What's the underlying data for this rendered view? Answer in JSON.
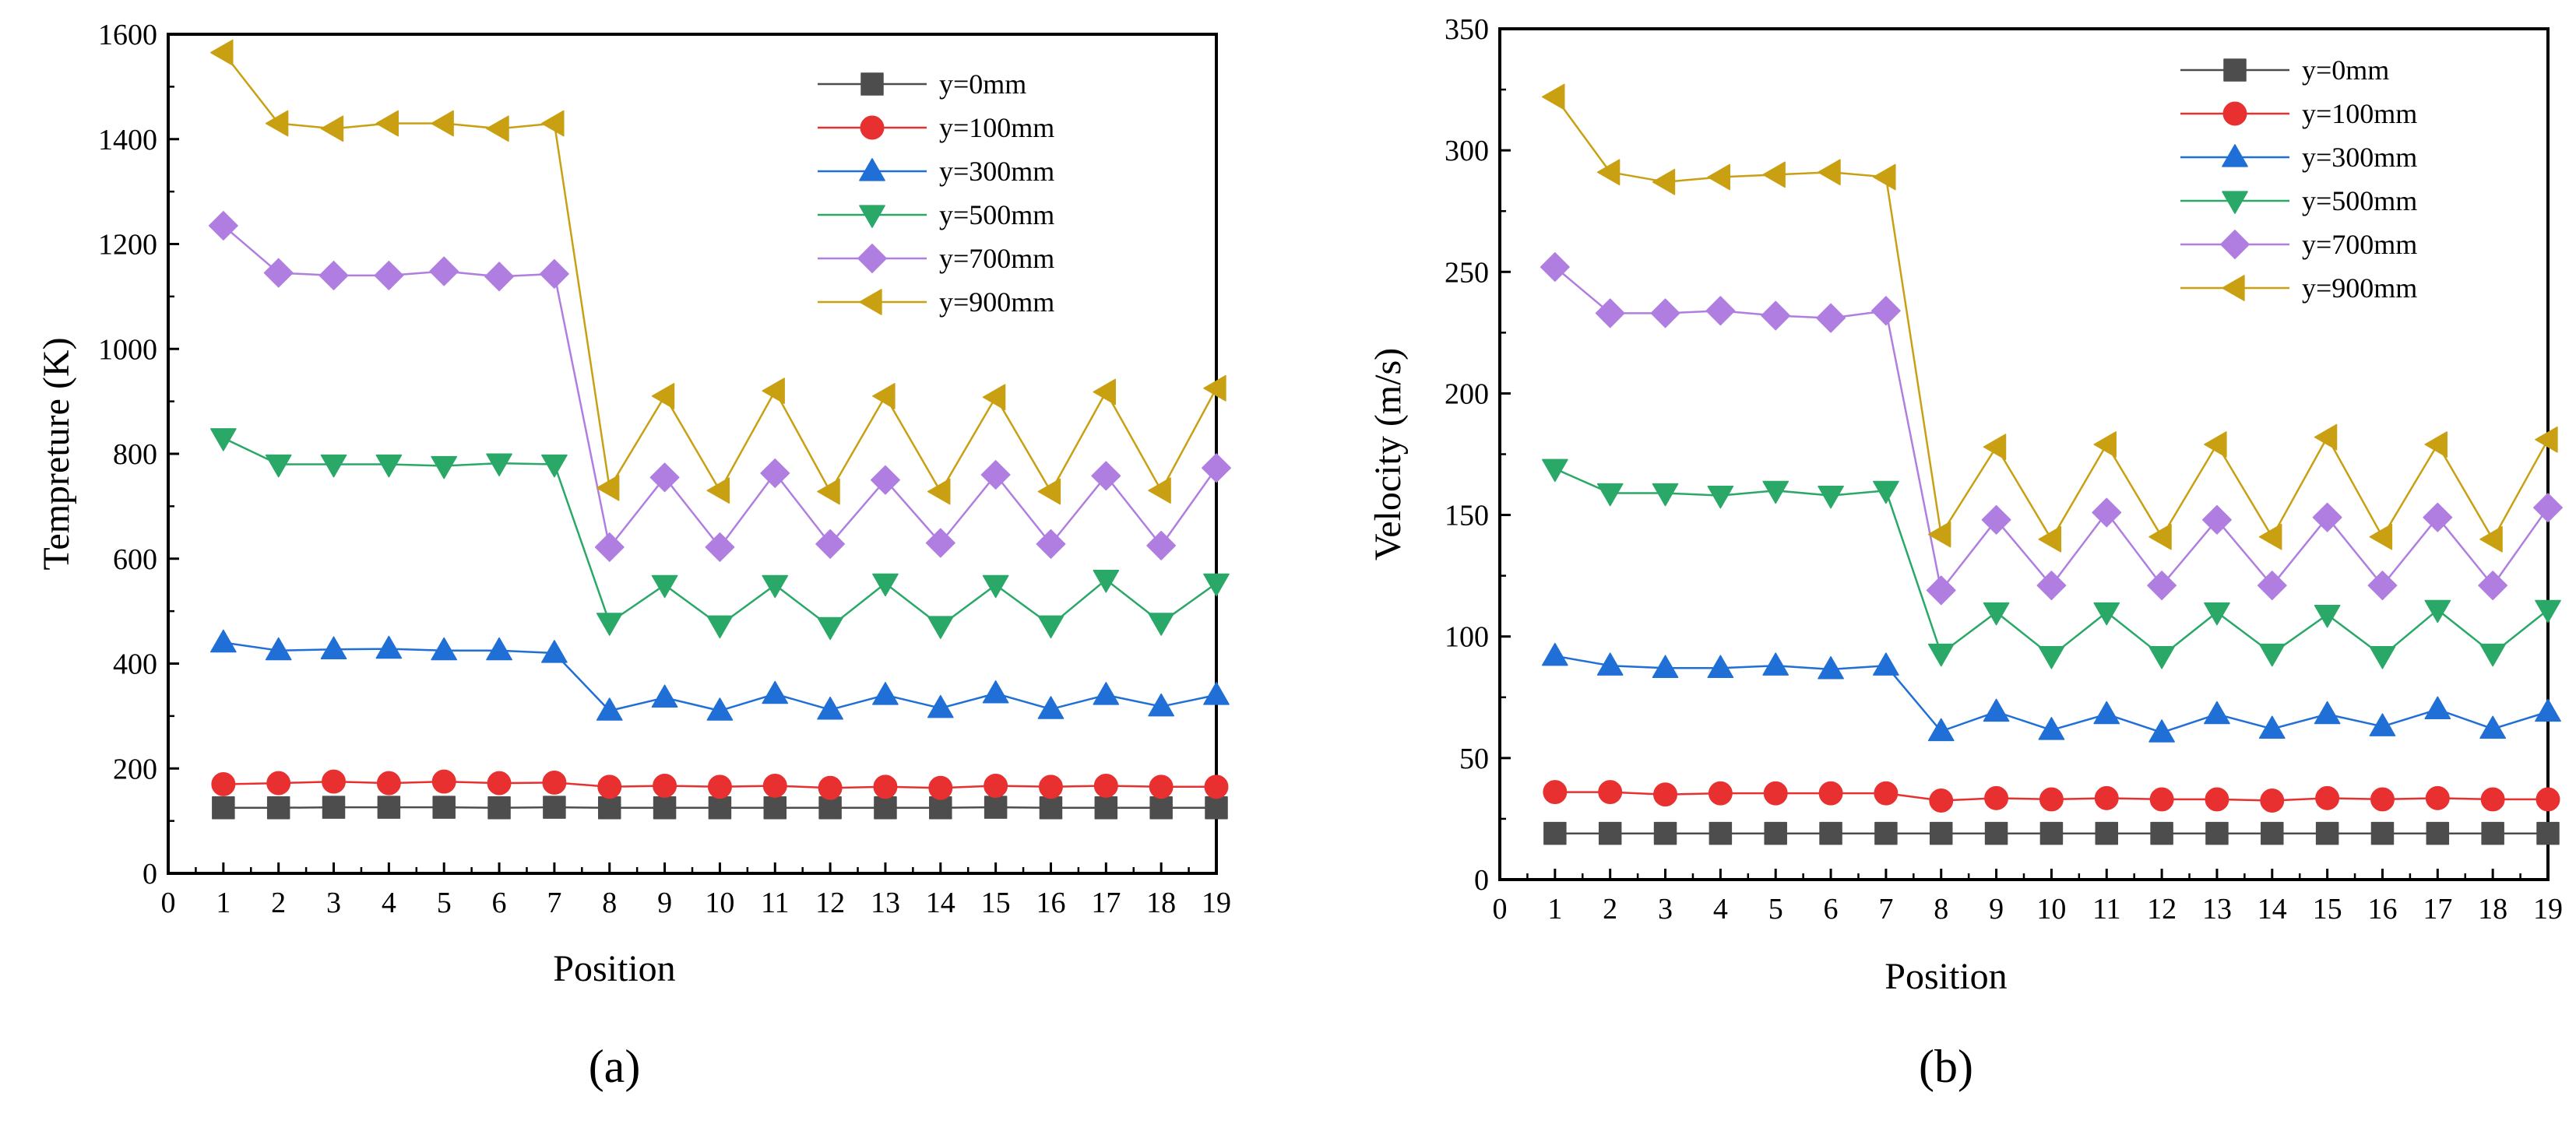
{
  "figure": {
    "panels": [
      "(a)",
      "(b)"
    ]
  },
  "chart_data": [
    {
      "panel_label": "(a)",
      "type": "line",
      "xlabel": "Position",
      "ylabel": "Tempreture (K)",
      "xlim": [
        0,
        19
      ],
      "ylim": [
        0,
        1600
      ],
      "xticks": [
        0,
        1,
        2,
        3,
        4,
        5,
        6,
        7,
        8,
        9,
        10,
        11,
        12,
        13,
        14,
        15,
        16,
        17,
        18,
        19
      ],
      "yticks": [
        0,
        200,
        400,
        600,
        800,
        1000,
        1200,
        1400,
        1600
      ],
      "grid": false,
      "legend_position": "top-right",
      "x": [
        1,
        2,
        3,
        4,
        5,
        6,
        7,
        8,
        9,
        10,
        11,
        12,
        13,
        14,
        15,
        16,
        17,
        18,
        19
      ],
      "series": [
        {
          "name": "y=0mm",
          "color": "#4d4d4d",
          "marker": "square",
          "values": [
            125,
            125,
            126,
            126,
            126,
            125,
            126,
            125,
            125,
            125,
            125,
            125,
            125,
            125,
            126,
            125,
            125,
            125,
            125
          ]
        },
        {
          "name": "y=100mm",
          "color": "#e83030",
          "marker": "circle",
          "values": [
            170,
            172,
            175,
            172,
            175,
            172,
            173,
            165,
            167,
            165,
            167,
            163,
            165,
            163,
            167,
            165,
            167,
            165,
            165
          ]
        },
        {
          "name": "y=300mm",
          "color": "#1f6fd6",
          "marker": "triangle-up",
          "values": [
            440,
            425,
            427,
            428,
            425,
            425,
            420,
            310,
            335,
            310,
            342,
            312,
            340,
            315,
            343,
            313,
            340,
            318,
            340
          ]
        },
        {
          "name": "y=500mm",
          "color": "#2aa868",
          "marker": "triangle-down",
          "values": [
            830,
            780,
            780,
            780,
            777,
            782,
            780,
            478,
            550,
            473,
            550,
            470,
            553,
            472,
            550,
            473,
            560,
            478,
            553
          ]
        },
        {
          "name": "y=700mm",
          "color": "#b07ee0",
          "marker": "diamond",
          "values": [
            1235,
            1145,
            1140,
            1140,
            1148,
            1138,
            1143,
            622,
            755,
            622,
            763,
            628,
            750,
            630,
            760,
            628,
            758,
            625,
            773
          ]
        },
        {
          "name": "y=900mm",
          "color": "#c9a012",
          "marker": "triangle-left",
          "values": [
            1565,
            1430,
            1420,
            1430,
            1430,
            1420,
            1430,
            735,
            910,
            730,
            920,
            728,
            910,
            728,
            908,
            728,
            918,
            730,
            925
          ]
        }
      ]
    },
    {
      "panel_label": "(b)",
      "type": "line",
      "xlabel": "Position",
      "ylabel": "Velocity (m/s)",
      "xlim": [
        0,
        19
      ],
      "ylim": [
        0,
        350
      ],
      "xticks": [
        0,
        1,
        2,
        3,
        4,
        5,
        6,
        7,
        8,
        9,
        10,
        11,
        12,
        13,
        14,
        15,
        16,
        17,
        18,
        19
      ],
      "yticks": [
        0,
        50,
        100,
        150,
        200,
        250,
        300,
        350
      ],
      "grid": false,
      "legend_position": "top-right",
      "x": [
        1,
        2,
        3,
        4,
        5,
        6,
        7,
        8,
        9,
        10,
        11,
        12,
        13,
        14,
        15,
        16,
        17,
        18,
        19
      ],
      "series": [
        {
          "name": "y=0mm",
          "color": "#4d4d4d",
          "marker": "square",
          "values": [
            19,
            19,
            19,
            19,
            19,
            19,
            19,
            19,
            19,
            19,
            19,
            19,
            19,
            19,
            19,
            19,
            19,
            19,
            19
          ]
        },
        {
          "name": "y=100mm",
          "color": "#e83030",
          "marker": "circle",
          "values": [
            36,
            36,
            35,
            35.5,
            35.5,
            35.5,
            35.5,
            32.5,
            33.5,
            33,
            33.5,
            33,
            33,
            32.5,
            33.5,
            33,
            33.5,
            33,
            33
          ]
        },
        {
          "name": "y=300mm",
          "color": "#1f6fd6",
          "marker": "triangle-up",
          "values": [
            92,
            88,
            87,
            87,
            88,
            86.5,
            88,
            61,
            69,
            61.5,
            68,
            60.5,
            68,
            62,
            68,
            63,
            70,
            62,
            69
          ]
        },
        {
          "name": "y=500mm",
          "color": "#2aa868",
          "marker": "triangle-down",
          "values": [
            169,
            159,
            159,
            158,
            160,
            158,
            160,
            93,
            110,
            92,
            110,
            92,
            110,
            93,
            109,
            92,
            111,
            93,
            111
          ]
        },
        {
          "name": "y=700mm",
          "color": "#b07ee0",
          "marker": "diamond",
          "values": [
            252,
            233,
            233,
            234,
            232,
            231,
            234,
            119,
            148,
            121,
            151,
            121,
            148,
            121,
            149,
            121,
            149,
            121,
            153
          ]
        },
        {
          "name": "y=900mm",
          "color": "#c9a012",
          "marker": "triangle-left",
          "values": [
            322,
            291,
            287,
            289,
            290,
            291,
            289,
            142,
            178,
            140,
            179,
            141,
            179,
            141,
            182,
            141,
            179,
            140,
            181
          ]
        }
      ]
    }
  ]
}
